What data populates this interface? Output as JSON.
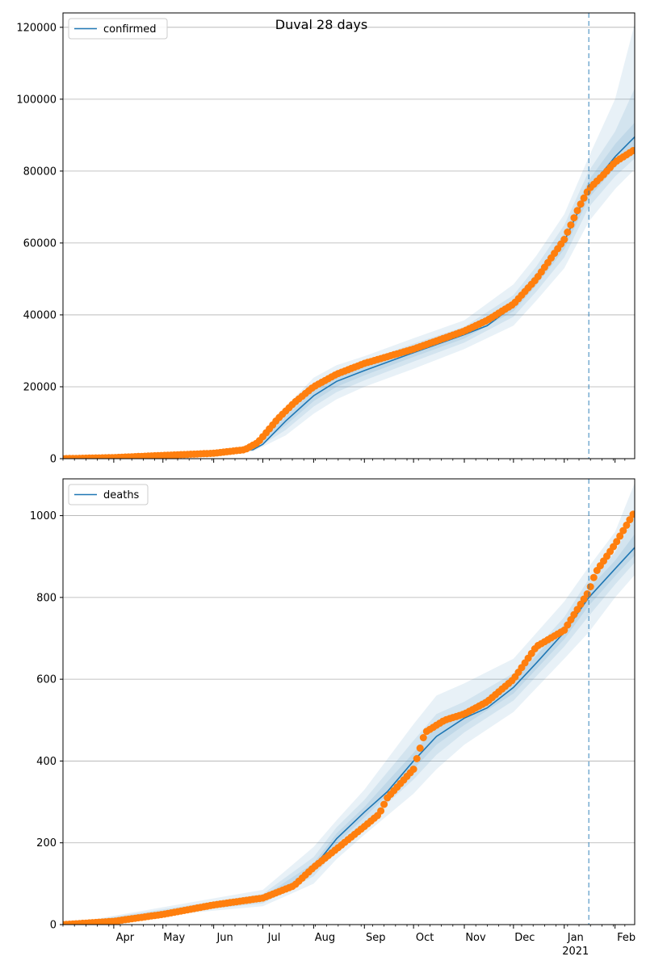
{
  "colors": {
    "fit": "#1f77b4",
    "observed": "#ff7f0e",
    "band": "#1f77b4",
    "grid": "#b0b0b0",
    "cutoff": "#1f77b4"
  },
  "chart_data": [
    {
      "type": "line",
      "title": "Duval 28 days",
      "legend": "confirmed",
      "legend_position": "top-left",
      "grid": "horizontal",
      "ylim": [
        0,
        124000
      ],
      "xlim": [
        "2020-03-01",
        "2021-02-13"
      ],
      "yticks": [
        0,
        20000,
        40000,
        60000,
        80000,
        100000,
        120000
      ],
      "ytick_labels": [
        "0",
        "20000",
        "40000",
        "60000",
        "80000",
        "100000",
        "120000"
      ],
      "cutoff_date": "2021-01-16",
      "fit_series": {
        "name": "confirmed",
        "points": [
          [
            "2020-03-01",
            0
          ],
          [
            "2020-04-01",
            200
          ],
          [
            "2020-05-01",
            700
          ],
          [
            "2020-06-01",
            1300
          ],
          [
            "2020-06-25",
            2500
          ],
          [
            "2020-07-01",
            4000
          ],
          [
            "2020-07-15",
            10500
          ],
          [
            "2020-08-01",
            17500
          ],
          [
            "2020-08-15",
            21500
          ],
          [
            "2020-09-01",
            24500
          ],
          [
            "2020-10-01",
            29500
          ],
          [
            "2020-11-01",
            34500
          ],
          [
            "2020-11-15",
            37000
          ],
          [
            "2020-12-01",
            42500
          ],
          [
            "2020-12-15",
            50000
          ],
          [
            "2021-01-01",
            60500
          ],
          [
            "2021-01-16",
            75000
          ],
          [
            "2021-02-01",
            84000
          ],
          [
            "2021-02-13",
            89500
          ]
        ]
      },
      "bands": [
        {
          "points": [
            [
              "2020-03-01",
              0,
              0
            ],
            [
              "2020-06-25",
              2000,
              3000
            ],
            [
              "2020-07-15",
              6500,
              14500
            ],
            [
              "2020-08-01",
              12500,
              22500
            ],
            [
              "2020-08-15",
              16500,
              26000
            ],
            [
              "2020-09-01",
              20000,
              28500
            ],
            [
              "2020-10-01",
              25000,
              33500
            ],
            [
              "2020-11-01",
              30500,
              38500
            ],
            [
              "2020-12-01",
              37000,
              48500
            ],
            [
              "2020-12-15",
              44000,
              56500
            ],
            [
              "2021-01-01",
              53000,
              68000
            ],
            [
              "2021-01-16",
              66000,
              84000
            ],
            [
              "2021-02-01",
              75000,
              100000
            ],
            [
              "2021-02-13",
              80500,
              121000
            ]
          ]
        },
        {
          "points": [
            [
              "2020-03-01",
              0,
              0
            ],
            [
              "2020-06-25",
              2200,
              2800
            ],
            [
              "2020-07-15",
              8000,
              13000
            ],
            [
              "2020-08-01",
              14500,
              21000
            ],
            [
              "2020-08-15",
              18500,
              24500
            ],
            [
              "2020-09-01",
              21800,
              27000
            ],
            [
              "2020-10-01",
              27000,
              32000
            ],
            [
              "2020-11-01",
              32300,
              36700
            ],
            [
              "2020-12-01",
              39500,
              45500
            ],
            [
              "2020-12-15",
              46500,
              53500
            ],
            [
              "2021-01-01",
              56000,
              65000
            ],
            [
              "2021-01-16",
              70000,
              80000
            ],
            [
              "2021-02-01",
              78500,
              91000
            ],
            [
              "2021-02-13",
              83500,
              103000
            ]
          ]
        },
        {
          "points": [
            [
              "2020-03-01",
              0,
              0
            ],
            [
              "2020-06-25",
              2350,
              2650
            ],
            [
              "2020-07-15",
              9300,
              11700
            ],
            [
              "2020-08-01",
              16000,
              19000
            ],
            [
              "2020-08-15",
              20000,
              23000
            ],
            [
              "2020-09-01",
              23200,
              25800
            ],
            [
              "2020-10-01",
              28300,
              30700
            ],
            [
              "2020-11-01",
              33400,
              35600
            ],
            [
              "2020-12-01",
              41000,
              44000
            ],
            [
              "2020-12-15",
              48300,
              51700
            ],
            [
              "2021-01-01",
              58300,
              62700
            ],
            [
              "2021-01-16",
              72500,
              77500
            ],
            [
              "2021-02-01",
              81000,
              87500
            ],
            [
              "2021-02-13",
              86000,
              93500
            ]
          ]
        }
      ],
      "observed": [
        [
          "2020-03-01",
          0
        ],
        [
          "2020-04-01",
          300
        ],
        [
          "2020-05-01",
          900
        ],
        [
          "2020-06-01",
          1500
        ],
        [
          "2020-06-20",
          2500
        ],
        [
          "2020-06-28",
          4500
        ],
        [
          "2020-07-10",
          11000
        ],
        [
          "2020-07-20",
          15500
        ],
        [
          "2020-08-01",
          20000
        ],
        [
          "2020-08-15",
          23500
        ],
        [
          "2020-09-01",
          26500
        ],
        [
          "2020-10-01",
          30500
        ],
        [
          "2020-11-01",
          35500
        ],
        [
          "2020-11-15",
          38500
        ],
        [
          "2020-12-01",
          43000
        ],
        [
          "2020-12-15",
          50000
        ],
        [
          "2021-01-01",
          61000
        ],
        [
          "2021-01-10",
          70000
        ],
        [
          "2021-01-16",
          75000
        ],
        [
          "2021-01-25",
          79000
        ],
        [
          "2021-02-01",
          82500
        ],
        [
          "2021-02-13",
          86000
        ]
      ]
    },
    {
      "type": "line",
      "title": "",
      "legend": "deaths",
      "legend_position": "top-left",
      "grid": "horizontal",
      "ylim": [
        0,
        1090
      ],
      "xlim": [
        "2020-03-01",
        "2021-02-13"
      ],
      "yticks": [
        0,
        200,
        400,
        600,
        800,
        1000
      ],
      "ytick_labels": [
        "0",
        "200",
        "400",
        "600",
        "800",
        "1000"
      ],
      "xticks": [
        "2020-04-01",
        "2020-05-01",
        "2020-06-01",
        "2020-07-01",
        "2020-08-01",
        "2020-09-01",
        "2020-10-01",
        "2020-11-01",
        "2020-12-01",
        "2021-01-01",
        "2021-02-01"
      ],
      "xtick_labels": [
        "Apr",
        "May",
        "Jun",
        "Jul",
        "Aug",
        "Sep",
        "Oct",
        "Nov",
        "Dec",
        "Jan",
        "Feb"
      ],
      "year_label": "2021",
      "cutoff_date": "2021-01-16",
      "fit_series": {
        "name": "deaths",
        "points": [
          [
            "2020-03-01",
            0
          ],
          [
            "2020-04-01",
            8
          ],
          [
            "2020-05-01",
            25
          ],
          [
            "2020-06-01",
            45
          ],
          [
            "2020-07-01",
            62
          ],
          [
            "2020-07-15",
            85
          ],
          [
            "2020-08-01",
            140
          ],
          [
            "2020-08-15",
            210
          ],
          [
            "2020-09-01",
            275
          ],
          [
            "2020-09-15",
            325
          ],
          [
            "2020-10-01",
            400
          ],
          [
            "2020-10-15",
            460
          ],
          [
            "2020-11-01",
            505
          ],
          [
            "2020-11-15",
            530
          ],
          [
            "2020-12-01",
            580
          ],
          [
            "2020-12-15",
            640
          ],
          [
            "2021-01-01",
            715
          ],
          [
            "2021-01-16",
            800
          ],
          [
            "2021-02-01",
            870
          ],
          [
            "2021-02-13",
            922
          ]
        ]
      },
      "bands": [
        {
          "points": [
            [
              "2020-03-01",
              0,
              0
            ],
            [
              "2020-07-01",
              45,
              85
            ],
            [
              "2020-08-01",
              100,
              190
            ],
            [
              "2020-08-15",
              160,
              255
            ],
            [
              "2020-09-01",
              220,
              330
            ],
            [
              "2020-10-01",
              320,
              490
            ],
            [
              "2020-10-15",
              380,
              560
            ],
            [
              "2020-11-01",
              440,
              590
            ],
            [
              "2020-12-01",
              520,
              650
            ],
            [
              "2021-01-01",
              650,
              790
            ],
            [
              "2021-01-16",
              715,
              875
            ],
            [
              "2021-02-01",
              800,
              960
            ],
            [
              "2021-02-13",
              855,
              1080
            ]
          ]
        },
        {
          "points": [
            [
              "2020-03-01",
              0,
              0
            ],
            [
              "2020-07-01",
              52,
              75
            ],
            [
              "2020-08-01",
              118,
              165
            ],
            [
              "2020-08-15",
              182,
              238
            ],
            [
              "2020-09-01",
              245,
              305
            ],
            [
              "2020-10-01",
              355,
              450
            ],
            [
              "2020-10-15",
              415,
              515
            ],
            [
              "2020-11-01",
              470,
              545
            ],
            [
              "2020-12-01",
              548,
              615
            ],
            [
              "2021-01-01",
              680,
              752
            ],
            [
              "2021-01-16",
              755,
              845
            ],
            [
              "2021-02-01",
              832,
              910
            ],
            [
              "2021-02-13",
              885,
              1000
            ]
          ]
        },
        {
          "points": [
            [
              "2020-03-01",
              0,
              0
            ],
            [
              "2020-07-01",
              57,
              68
            ],
            [
              "2020-08-01",
              130,
              150
            ],
            [
              "2020-08-15",
              197,
              223
            ],
            [
              "2020-09-01",
              262,
              288
            ],
            [
              "2020-10-01",
              380,
              420
            ],
            [
              "2020-10-15",
              440,
              485
            ],
            [
              "2020-11-01",
              488,
              522
            ],
            [
              "2020-12-01",
              565,
              597
            ],
            [
              "2021-01-01",
              698,
              733
            ],
            [
              "2021-01-16",
              780,
              822
            ],
            [
              "2021-02-01",
              852,
              890
            ],
            [
              "2021-02-13",
              903,
              955
            ]
          ]
        }
      ],
      "observed": [
        [
          "2020-03-01",
          0
        ],
        [
          "2020-04-01",
          8
        ],
        [
          "2020-05-01",
          25
        ],
        [
          "2020-06-01",
          48
        ],
        [
          "2020-07-01",
          65
        ],
        [
          "2020-07-20",
          95
        ],
        [
          "2020-08-01",
          140
        ],
        [
          "2020-08-15",
          185
        ],
        [
          "2020-09-01",
          240
        ],
        [
          "2020-09-10",
          270
        ],
        [
          "2020-09-15",
          310
        ],
        [
          "2020-10-01",
          380
        ],
        [
          "2020-10-08",
          470
        ],
        [
          "2020-10-20",
          500
        ],
        [
          "2020-11-01",
          515
        ],
        [
          "2020-11-15",
          545
        ],
        [
          "2020-12-01",
          600
        ],
        [
          "2020-12-15",
          680
        ],
        [
          "2021-01-01",
          720
        ],
        [
          "2021-01-16",
          815
        ],
        [
          "2021-01-20",
          860
        ],
        [
          "2021-02-01",
          930
        ],
        [
          "2021-02-13",
          1010
        ]
      ]
    }
  ]
}
